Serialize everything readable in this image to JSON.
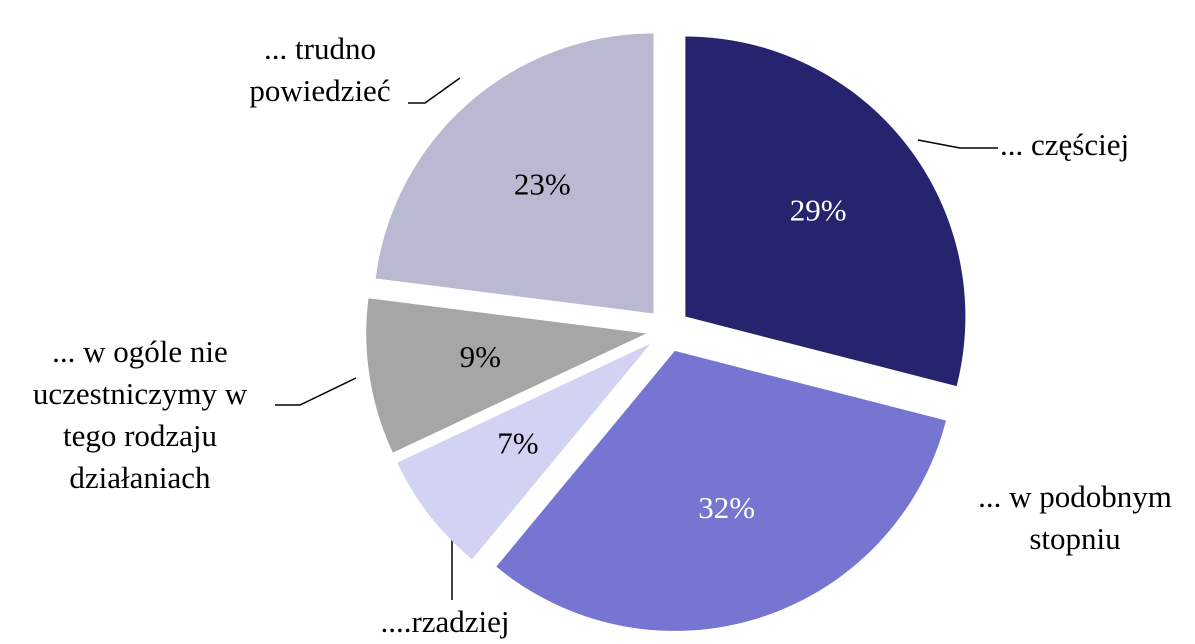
{
  "chart_data": {
    "type": "pie",
    "categories": [
      "... częściej",
      "... w podobnym\nstopniu",
      "....rzadziej",
      "... w ogóle nie\nuczestniczymy w\ntego rodzaju\ndziałaniach",
      "... trudno\npowiedzieć"
    ],
    "values": [
      29,
      32,
      7,
      9,
      23
    ],
    "value_labels": [
      "29%",
      "32%",
      "7%",
      "9%",
      "23%"
    ],
    "colors": [
      "#26246e",
      "#7676d2",
      "#d2d2f2",
      "#a6a6a6",
      "#b9b9d2"
    ],
    "label_colors": [
      "#ffffff",
      "#ffffff",
      "#000000",
      "#000000",
      "#000000"
    ]
  }
}
